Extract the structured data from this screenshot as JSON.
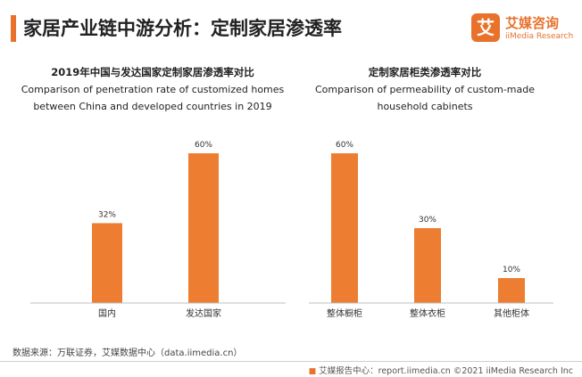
{
  "header": {
    "title": "家居产业链中游分析：定制家居渗透率",
    "accent_color": "#e8722c"
  },
  "logo": {
    "mark": "艾",
    "cn": "艾媒咨询",
    "en": "iiMedia Research"
  },
  "chart_data": [
    {
      "type": "bar",
      "title": "2019年中国与发达国家定制家居渗透率对比",
      "subtitle": "Comparison of penetration rate of customized homes between China and developed countries in 2019",
      "categories": [
        "国内",
        "发达国家"
      ],
      "values": [
        32,
        60
      ],
      "value_labels": [
        "32%",
        "60%"
      ],
      "unit": "%",
      "ylim": [
        0,
        60
      ],
      "grid": false,
      "legend": "none",
      "bar_color": "#ed7d31"
    },
    {
      "type": "bar",
      "title": "定制家居柜类渗透率对比",
      "subtitle": "Comparison of permeability of custom-made household cabinets",
      "categories": [
        "整体橱柜",
        "整体衣柜",
        "其他柜体"
      ],
      "values": [
        60,
        30,
        10
      ],
      "value_labels": [
        "60%",
        "30%",
        "10%"
      ],
      "unit": "%",
      "ylim": [
        0,
        60
      ],
      "grid": false,
      "legend": "none",
      "bar_color": "#ed7d31"
    }
  ],
  "source": "数据来源：万联证券，艾媒数据中心（data.iimedia.cn）",
  "footer": {
    "icon": "iimedia-logo-icon",
    "text": "艾媒报告中心：report.iimedia.cn ©2021 iiMedia Research Inc"
  }
}
